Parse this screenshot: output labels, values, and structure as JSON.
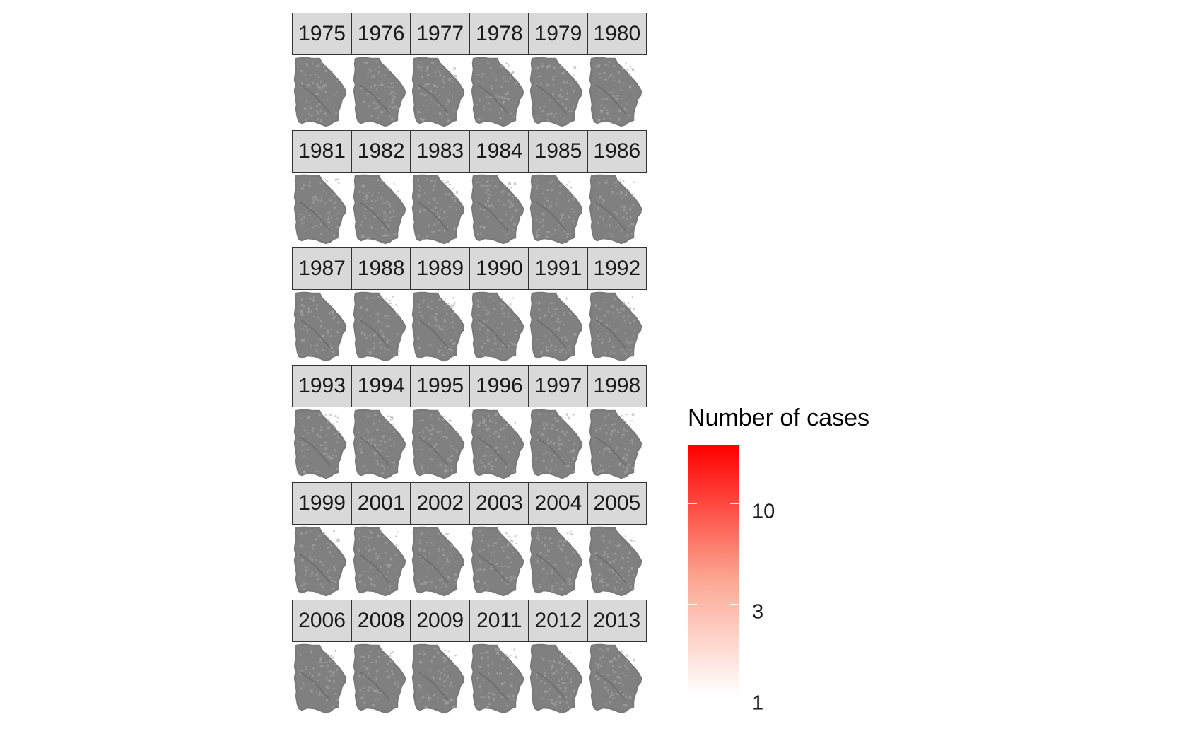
{
  "chart_data": {
    "type": "choropleth-facet",
    "facets": [
      [
        "1975",
        "1976",
        "1977",
        "1978",
        "1979",
        "1980"
      ],
      [
        "1981",
        "1982",
        "1983",
        "1984",
        "1985",
        "1986"
      ],
      [
        "1987",
        "1988",
        "1989",
        "1990",
        "1991",
        "1992"
      ],
      [
        "1993",
        "1994",
        "1995",
        "1996",
        "1997",
        "1998"
      ],
      [
        "1999",
        "2001",
        "2002",
        "2003",
        "2004",
        "2005"
      ],
      [
        "2006",
        "2008",
        "2009",
        "2011",
        "2012",
        "2013"
      ]
    ],
    "map_fill": "#808080",
    "legend": {
      "title": "Number of cases",
      "scale": "log",
      "range": [
        1,
        20
      ],
      "ticks": [
        {
          "value": 1,
          "label": "1"
        },
        {
          "value": 3,
          "label": "3"
        },
        {
          "value": 10,
          "label": "10"
        }
      ],
      "colors": {
        "low": "#ffffff",
        "high": "#ff0000"
      }
    }
  }
}
